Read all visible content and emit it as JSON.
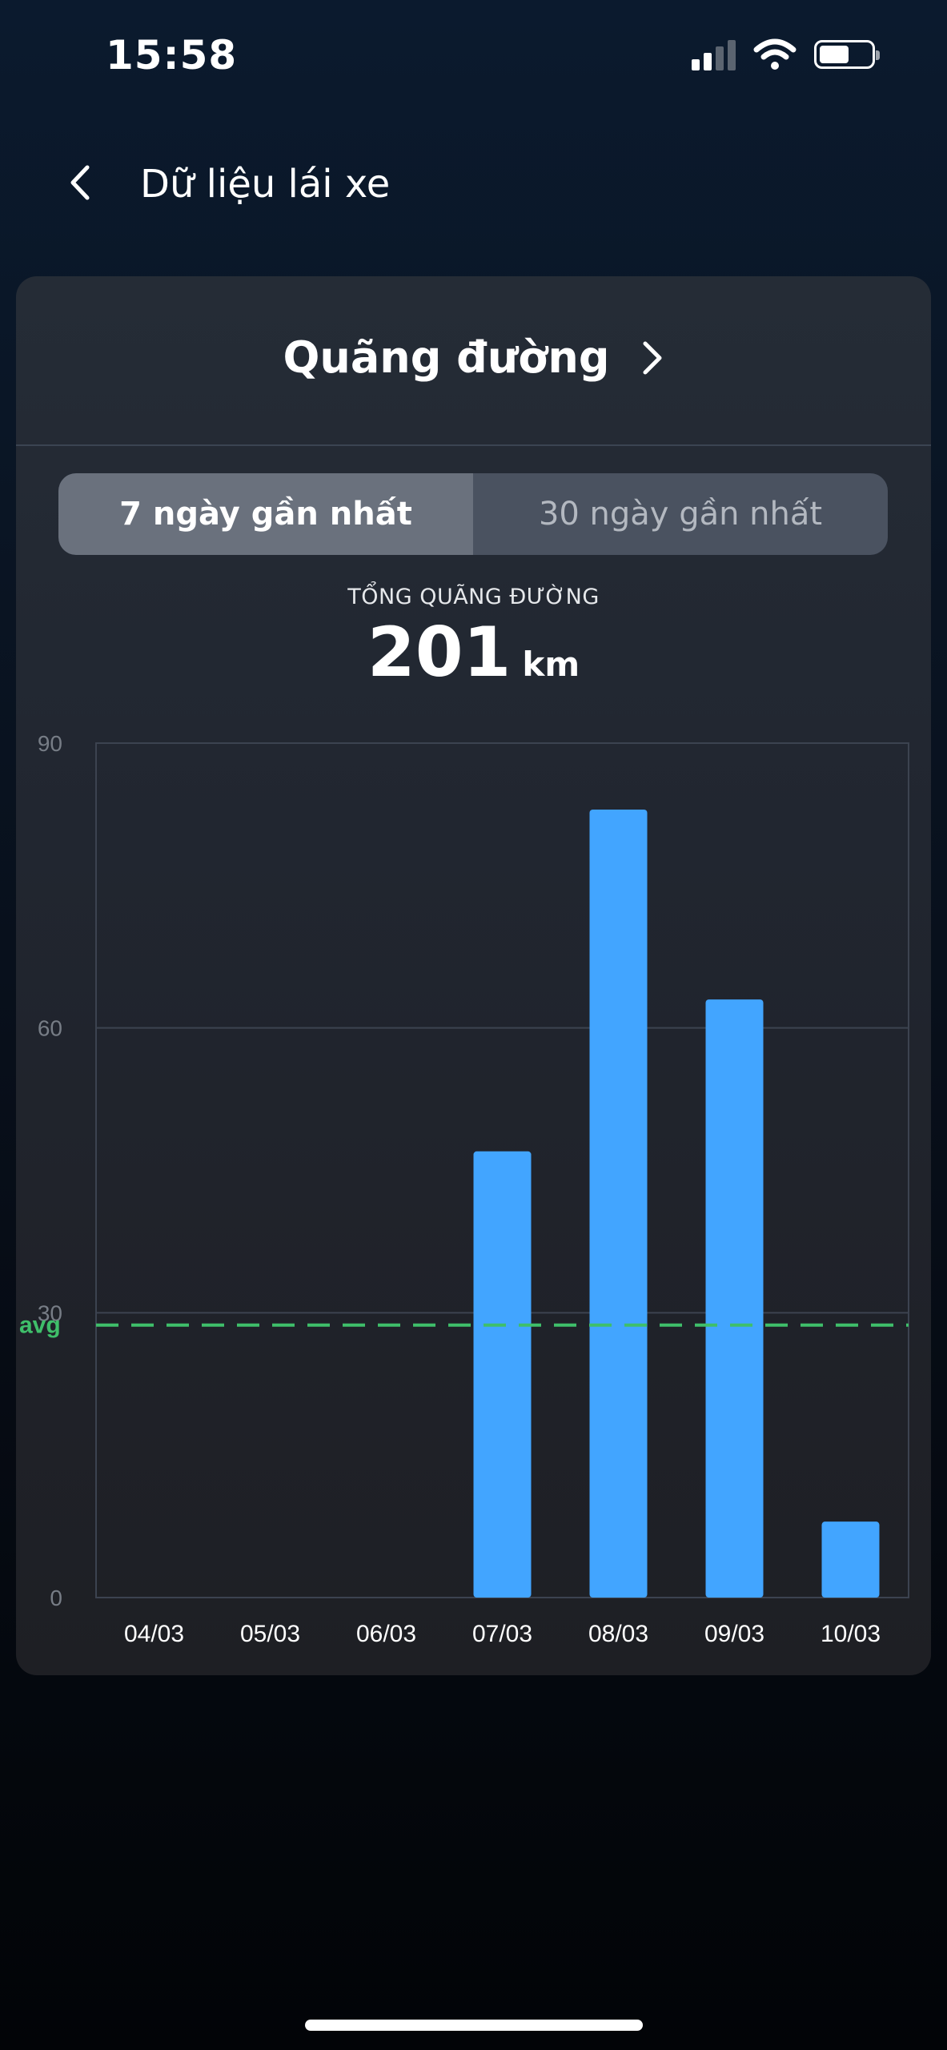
{
  "status_bar": {
    "time": "15:58",
    "icons": [
      "signal-icon",
      "wifi-icon",
      "battery-icon"
    ],
    "battery_level": 0.6
  },
  "nav": {
    "back_icon": "chevron-left-icon",
    "title": "Dữ liệu lái xe"
  },
  "card": {
    "title": "Quãng đường",
    "title_icon": "chevron-right-icon",
    "tabs": [
      {
        "label": "7 ngày gần nhất",
        "selected": true
      },
      {
        "label": "30 ngày gần nhất",
        "selected": false
      }
    ],
    "total_label": "TỔNG QUÃNG ĐƯỜNG",
    "total_value": "201",
    "total_unit": "km"
  },
  "chart_data": {
    "type": "bar",
    "categories": [
      "04/03",
      "05/03",
      "06/03",
      "07/03",
      "08/03",
      "09/03",
      "10/03"
    ],
    "values": [
      0,
      0,
      0,
      47,
      83,
      63,
      8
    ],
    "y_ticks": [
      0,
      30,
      60,
      90
    ],
    "ylim": [
      0,
      90
    ],
    "avg_label": "avg",
    "avg_value": 28.7,
    "grid": true,
    "colors": {
      "bar": "#42a5ff",
      "avg_line": "#3fbf6a",
      "grid": "#3c4350",
      "tick_text": "#777d86"
    }
  },
  "home_indicator": true
}
